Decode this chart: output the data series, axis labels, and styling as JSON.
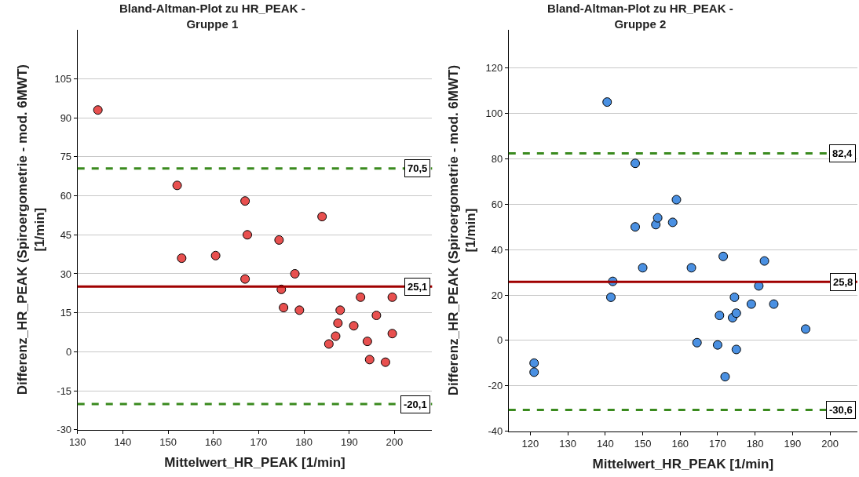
{
  "chart_data": [
    {
      "type": "scatter",
      "title": "Bland-Altman-Plot zu HR_PEAK -\nGruppe 1",
      "xlabel": "Mittelwert_HR_PEAK [1/min]",
      "ylabel": "Differenz_HR_PEAK (Spiroergometrie - mod. 6MWT)\n[1/min]",
      "xlim": [
        130,
        208.3
      ],
      "xticks": [
        130,
        140,
        150,
        160,
        170,
        180,
        190,
        200
      ],
      "ylim": [
        -30,
        124
      ],
      "yticks": [
        -30,
        -15,
        0,
        15,
        30,
        45,
        60,
        75,
        90,
        105
      ],
      "grid": "y",
      "marker": "circle",
      "series": [
        {
          "color": "#e8504f",
          "x": [
            134.5,
            152,
            153,
            160.5,
            167,
            167.5,
            167,
            174.5,
            175,
            175.5,
            178,
            179,
            184,
            185.5,
            187,
            187.5,
            188,
            191,
            192.5,
            194,
            194.5,
            196,
            198,
            199.5,
            199.5
          ],
          "values": [
            93,
            64,
            36,
            37,
            58,
            45,
            28,
            43,
            24,
            17,
            30,
            16,
            52,
            3,
            6,
            11,
            16,
            10,
            21,
            4,
            -3,
            14,
            -4,
            21,
            7
          ]
        }
      ],
      "ref_lines": [
        {
          "axis": "y",
          "value": 70.5,
          "label": "70,5",
          "color": "#3a8a1e",
          "line_style": "dashed"
        },
        {
          "axis": "y",
          "value": 25.1,
          "label": "25,1",
          "color": "#a00000",
          "line_style": "solid"
        },
        {
          "axis": "y",
          "value": -20.1,
          "label": "-20,1",
          "color": "#3a8a1e",
          "line_style": "dashed"
        }
      ]
    },
    {
      "type": "scatter",
      "title": "Bland-Altman-Plot zu HR_PEAK -\nGruppe 2",
      "xlabel": "Mittelwert_HR_PEAK [1/min]",
      "ylabel": "Differenz_HR_PEAK (Spiroergometrie - mod. 6MWT)\n[1/min]",
      "xlim": [
        114.2,
        207.3
      ],
      "xticks": [
        120,
        130,
        140,
        150,
        160,
        170,
        180,
        190,
        200
      ],
      "ylim": [
        -40,
        137
      ],
      "yticks": [
        -40,
        -20,
        0,
        20,
        40,
        60,
        80,
        100,
        120
      ],
      "grid": "y",
      "marker": "circle",
      "series": [
        {
          "color": "#4a90e2",
          "x": [
            121,
            121,
            140.5,
            141.5,
            142,
            148,
            148,
            150,
            153.5,
            154,
            158,
            159,
            163,
            164.5,
            170,
            170.5,
            171.5,
            172,
            174,
            174.5,
            175,
            175,
            179,
            181,
            182.5,
            185,
            193.5
          ],
          "values": [
            -10,
            -14,
            105,
            19,
            26,
            78,
            50,
            32,
            51,
            54,
            52,
            62,
            32,
            -1,
            -2,
            11,
            37,
            -16,
            10,
            19,
            12,
            -4,
            16,
            24,
            35,
            16,
            5
          ]
        }
      ],
      "ref_lines": [
        {
          "axis": "y",
          "value": 82.4,
          "label": "82,4",
          "color": "#3a8a1e",
          "line_style": "dashed"
        },
        {
          "axis": "y",
          "value": 25.8,
          "label": "25,8",
          "color": "#a00000",
          "line_style": "solid"
        },
        {
          "axis": "y",
          "value": -30.6,
          "label": "-30,6",
          "color": "#3a8a1e",
          "line_style": "dashed"
        }
      ]
    }
  ]
}
